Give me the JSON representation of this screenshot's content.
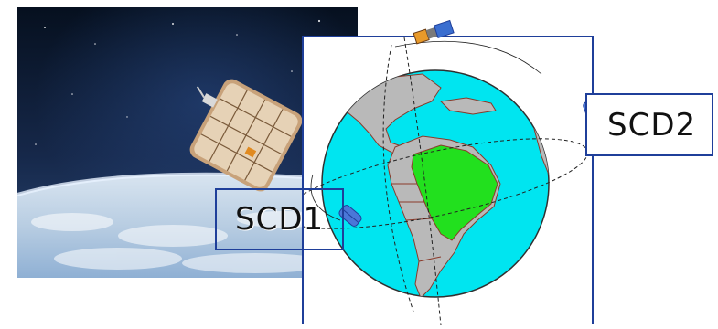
{
  "labels": {
    "scd1": "SCD1",
    "scd2": "SCD2"
  },
  "icons": {
    "photo": "satellite-in-orbit-photo",
    "globe": "earth-globe-south-america",
    "satellite": "satellite-icon"
  },
  "colors": {
    "frame": "#1f3f9a",
    "ocean": "#00e5f0",
    "land": "#b9b9b9",
    "brazil": "#22e01e",
    "space": "#0b1426"
  }
}
